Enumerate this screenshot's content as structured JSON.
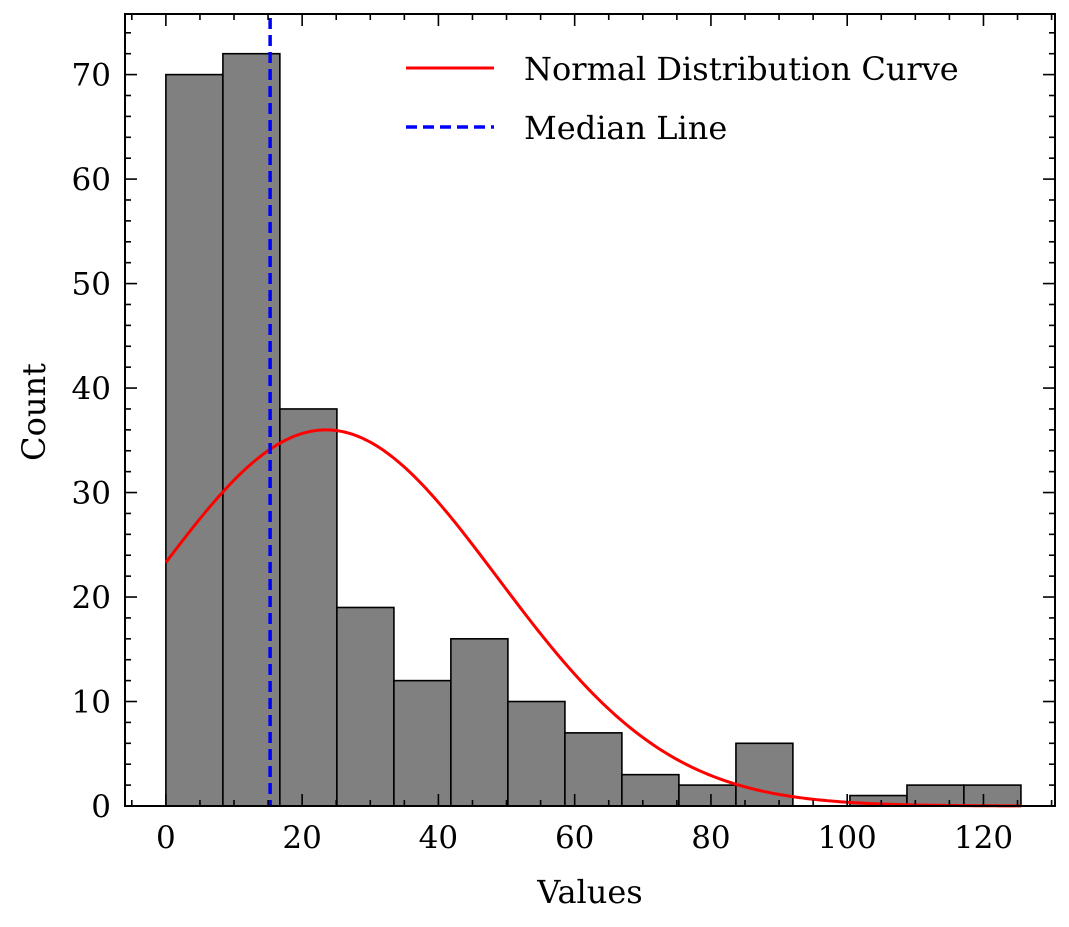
{
  "chart_data": {
    "type": "bar",
    "subtype": "histogram",
    "title": "",
    "xlabel": "Values",
    "ylabel": "Count",
    "xlim": [
      -6,
      130.5
    ],
    "ylim": [
      0,
      75.8
    ],
    "xticks": [
      0,
      20,
      40,
      60,
      80,
      100,
      120
    ],
    "yticks": [
      0,
      10,
      20,
      30,
      40,
      50,
      60,
      70
    ],
    "bin_edges": [
      0,
      8.37,
      16.73,
      25.1,
      33.47,
      41.83,
      50.2,
      58.57,
      66.93,
      75.3,
      83.67,
      92.03,
      100.4,
      108.77,
      117.13,
      125.5
    ],
    "counts": [
      70,
      72,
      38,
      19,
      12,
      16,
      10,
      7,
      3,
      2,
      6,
      0,
      1,
      2,
      2
    ],
    "bar_color": "#808080",
    "bar_edge_color": "#000000",
    "normal_curve": {
      "name": "Normal Distribution Curve",
      "color": "#ff0000",
      "mean": 23.5,
      "std": 25.2,
      "peak": 36,
      "x_range": [
        0,
        125.5
      ]
    },
    "median_line": {
      "name": "Median Line",
      "color": "#0000ff",
      "x": 15.3
    },
    "legend": {
      "placement": "top-right",
      "entries": [
        "Normal Distribution Curve",
        "Median Line"
      ]
    },
    "grid": false
  }
}
